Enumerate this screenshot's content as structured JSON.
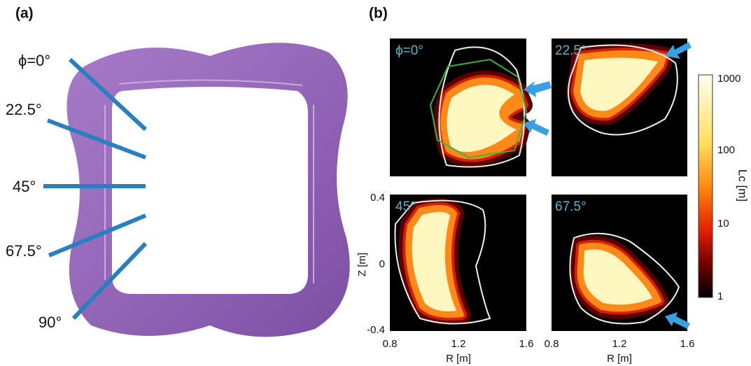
{
  "panel_a": {
    "label": "(a)",
    "angle_labels": [
      "ϕ=0°",
      "22.5°",
      "45°",
      "67.5°",
      "90°"
    ]
  },
  "panel_b": {
    "label": "(b)",
    "maps": [
      {
        "label": "ϕ=0°"
      },
      {
        "label": "22.5°"
      },
      {
        "label": "45°"
      },
      {
        "label": "67.5°"
      }
    ],
    "colorbar": {
      "title": "Lc [m]",
      "ticks": [
        1000,
        100,
        10,
        1
      ]
    },
    "z_axis": {
      "label": "Z [m]",
      "ticks": [
        0.4,
        0,
        -0.4
      ]
    },
    "r_axis": {
      "label": "R [m]",
      "ticks": [
        0.8,
        1.2,
        1.6
      ]
    }
  }
}
